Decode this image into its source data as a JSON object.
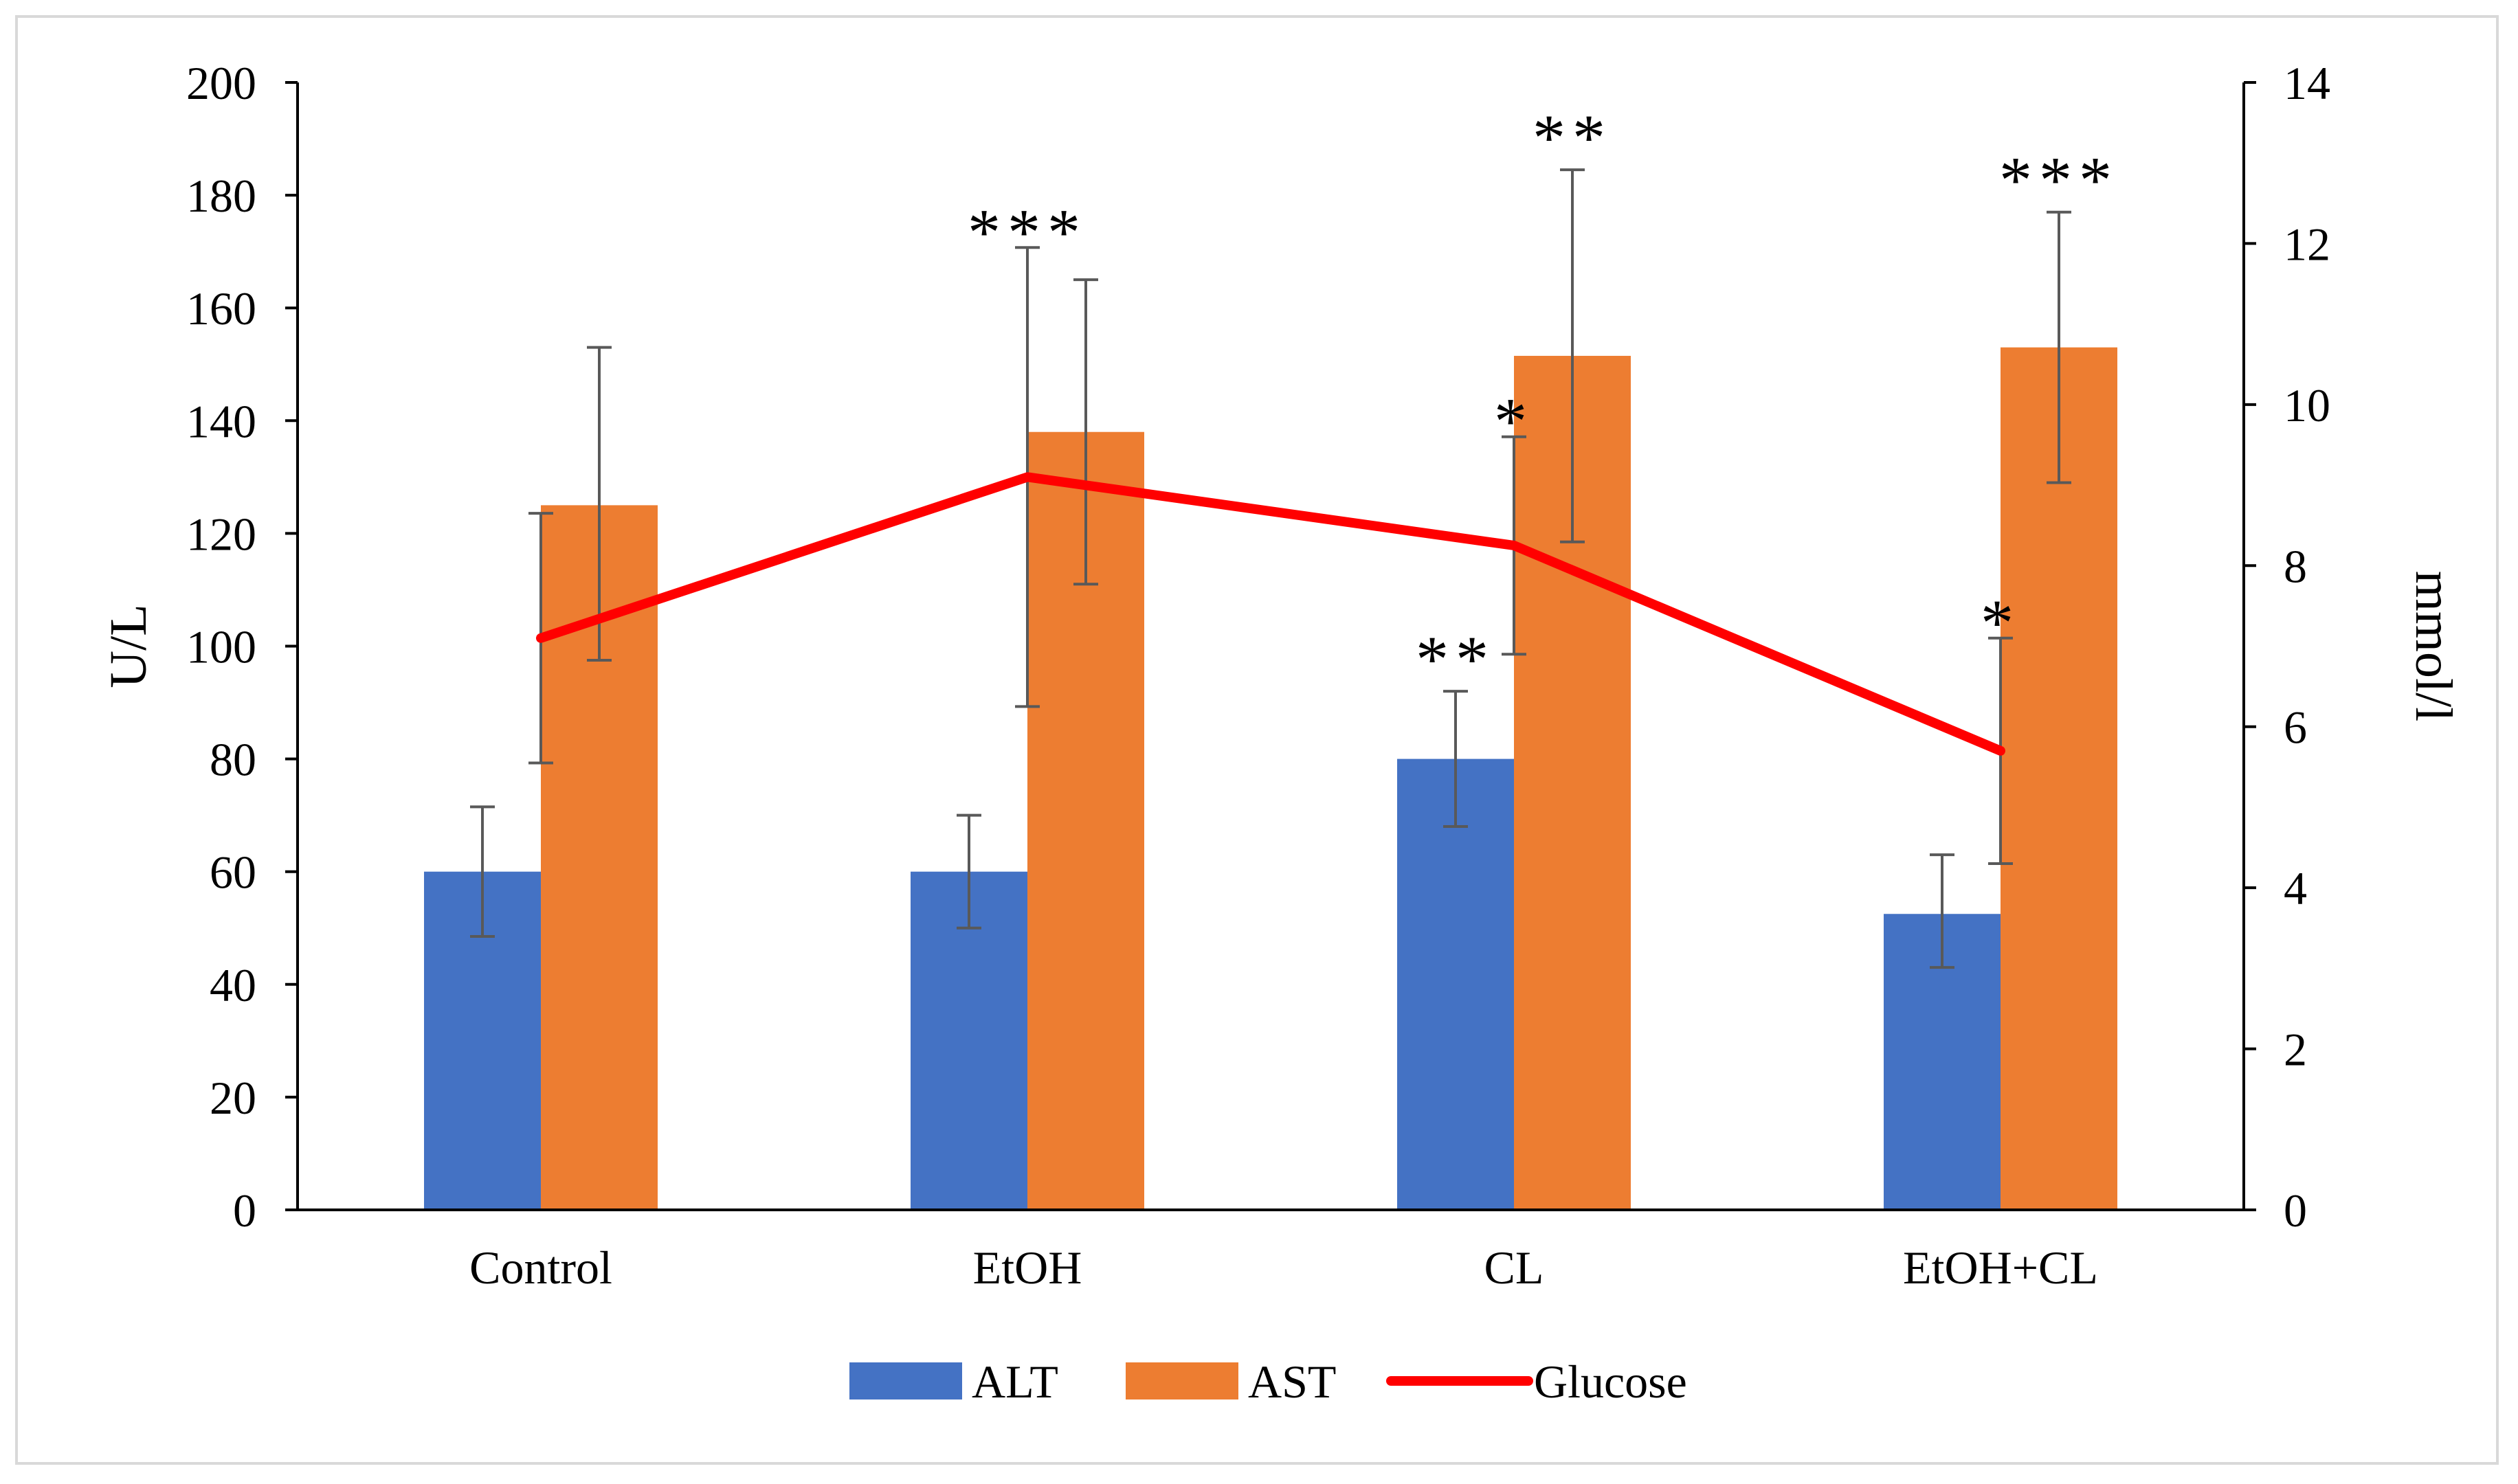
{
  "chart_data": {
    "type": "bar",
    "categories": [
      "Control",
      "EtOH",
      "CL",
      "EtOH+CL"
    ],
    "series": [
      {
        "name": "ALT",
        "kind": "bar",
        "axis": "left",
        "color": "#4472C4",
        "values": [
          60,
          60,
          80,
          52.5
        ],
        "error_low": [
          48.5,
          50,
          68,
          43
        ],
        "error_high": [
          71.5,
          70,
          92,
          63
        ],
        "significance": [
          "",
          "",
          "**",
          ""
        ]
      },
      {
        "name": "AST",
        "kind": "bar",
        "axis": "left",
        "color": "#ED7D31",
        "values": [
          125,
          138,
          151.5,
          153
        ],
        "error_low": [
          97.5,
          111,
          118.5,
          129
        ],
        "error_high": [
          153,
          165,
          184.5,
          177
        ],
        "significance": [
          "",
          "",
          "**",
          "***"
        ]
      },
      {
        "name": "Glucose",
        "kind": "line",
        "axis": "right",
        "color": "#FF0000",
        "values": [
          7.1,
          9.1,
          8.25,
          5.7
        ],
        "error_low": [
          5.55,
          6.25,
          6.9,
          4.3
        ],
        "error_high": [
          8.65,
          11.95,
          9.6,
          7.1
        ],
        "significance": [
          "",
          "***",
          "*",
          "*"
        ]
      }
    ],
    "title": "",
    "xlabel": "",
    "ylabel": "U/L",
    "y2label": "mmol/l",
    "ylim": [
      0,
      200
    ],
    "y2lim": [
      0,
      14
    ],
    "yticks": [
      0,
      20,
      40,
      60,
      80,
      100,
      120,
      140,
      160,
      180,
      200
    ],
    "y2ticks": [
      0,
      2,
      4,
      6,
      8,
      10,
      12,
      14
    ],
    "grid": false,
    "legend": "bottom",
    "legend_labels": [
      "ALT",
      "AST",
      "Glucose"
    ]
  }
}
